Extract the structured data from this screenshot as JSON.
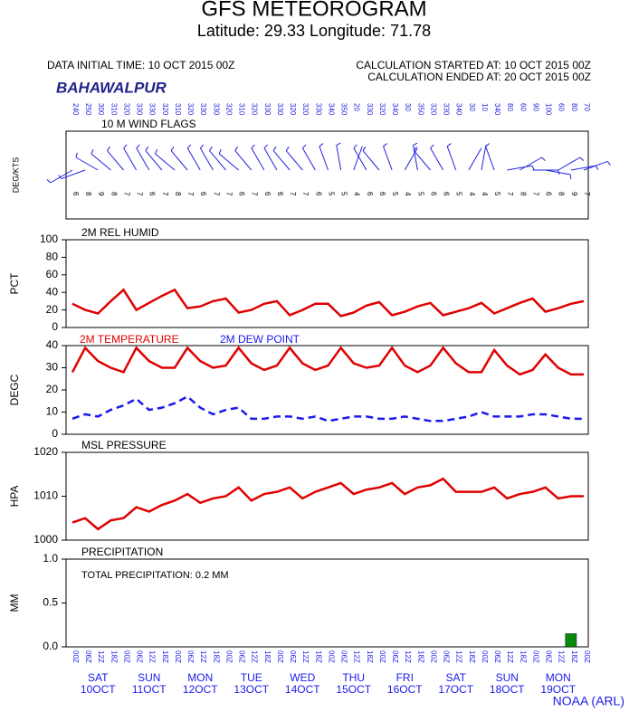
{
  "header": {
    "title": "GFS METEOROGRAM",
    "subtitle": "Latitude: 29.33 Longitude:  71.78",
    "initial_time": "DATA INITIAL TIME: 10 OCT 2015 00Z",
    "calc_started": "CALCULATION STARTED AT: 10 OCT 2015 00Z",
    "calc_ended": "CALCULATION ENDED AT: 20 OCT 2015 00Z",
    "station": "BAHAWALPUR"
  },
  "footer": "NOAA (ARL)",
  "time_axis": {
    "labels": [
      "00Z",
      "06Z",
      "12Z",
      "18Z",
      "00Z",
      "06Z",
      "12Z",
      "18Z",
      "00Z",
      "06Z",
      "12Z",
      "18Z",
      "00Z",
      "06Z",
      "12Z",
      "18Z",
      "00Z",
      "06Z",
      "12Z",
      "18Z",
      "00Z",
      "06Z",
      "12Z",
      "18Z",
      "00Z",
      "06Z",
      "12Z",
      "18Z",
      "00Z",
      "06Z",
      "12Z",
      "18Z",
      "00Z",
      "06Z",
      "12Z",
      "18Z",
      "00Z",
      "06Z",
      "12Z",
      "18Z",
      "00Z"
    ],
    "days": [
      {
        "day": "SAT",
        "date": "10OCT"
      },
      {
        "day": "SUN",
        "date": "11OCT"
      },
      {
        "day": "MON",
        "date": "12OCT"
      },
      {
        "day": "TUE",
        "date": "13OCT"
      },
      {
        "day": "WED",
        "date": "14OCT"
      },
      {
        "day": "THU",
        "date": "15OCT"
      },
      {
        "day": "FRI",
        "date": "16OCT"
      },
      {
        "day": "SAT",
        "date": "17OCT"
      },
      {
        "day": "SUN",
        "date": "18OCT"
      },
      {
        "day": "MON",
        "date": "19OCT"
      }
    ]
  },
  "chart_data": [
    {
      "type": "wind",
      "title": "10 M  WIND FLAGS",
      "ylabel": "DEG/KTS",
      "color": "#2222dd",
      "direction": [
        240,
        250,
        300,
        310,
        320,
        330,
        330,
        320,
        310,
        320,
        330,
        330,
        320,
        310,
        320,
        330,
        330,
        320,
        320,
        330,
        340,
        350,
        20,
        330,
        320,
        340,
        30,
        350,
        320,
        330,
        340,
        30,
        10,
        340,
        80,
        60,
        90,
        100,
        60,
        80,
        70
      ],
      "speed": [
        6,
        8,
        9,
        8,
        7,
        7,
        6,
        7,
        8,
        7,
        6,
        7,
        7,
        6,
        7,
        6,
        6,
        7,
        7,
        6,
        5,
        5,
        4,
        6,
        6,
        5,
        4,
        5,
        6,
        6,
        5,
        4,
        4,
        5,
        7,
        8,
        7,
        6,
        8,
        9,
        7
      ]
    },
    {
      "type": "line",
      "title": "2M REL HUMID",
      "ylabel": "PCT",
      "ylim": [
        0,
        100
      ],
      "yticks": [
        0,
        20,
        40,
        60,
        80,
        100
      ],
      "series": [
        {
          "color": "#e00000",
          "values": [
            27,
            20,
            16,
            30,
            43,
            20,
            28,
            36,
            43,
            22,
            24,
            30,
            33,
            17,
            20,
            27,
            30,
            14,
            20,
            27,
            27,
            13,
            17,
            25,
            29,
            14,
            18,
            24,
            28,
            14,
            18,
            22,
            28,
            16,
            22,
            28,
            33,
            18,
            22,
            27,
            30
          ]
        }
      ]
    },
    {
      "type": "line",
      "ylabel": "DEGC",
      "ylim": [
        0,
        40
      ],
      "yticks": [
        0,
        10,
        20,
        30,
        40
      ],
      "series": [
        {
          "name": "2M TEMPERATURE",
          "color": "#e00000",
          "values": [
            28,
            39,
            33,
            30,
            28,
            39,
            33,
            30,
            30,
            39,
            33,
            30,
            31,
            39,
            32,
            29,
            31,
            39,
            32,
            29,
            31,
            39,
            32,
            30,
            31,
            39,
            31,
            28,
            31,
            39,
            32,
            28,
            28,
            38,
            31,
            27,
            29,
            36,
            30,
            27,
            27
          ]
        },
        {
          "name": "2M  DEW POINT",
          "color": "#1a1aee",
          "dashed": true,
          "values": [
            7,
            9,
            8,
            11,
            13,
            16,
            11,
            12,
            14,
            17,
            12,
            9,
            11,
            12,
            7,
            7,
            8,
            8,
            7,
            8,
            6,
            7,
            8,
            8,
            7,
            7,
            8,
            7,
            6,
            6,
            7,
            8,
            10,
            8,
            8,
            8,
            9,
            9,
            8,
            7,
            7
          ]
        }
      ]
    },
    {
      "type": "line",
      "title": "MSL PRESSURE",
      "ylabel": "HPA",
      "ylim": [
        1000,
        1020
      ],
      "yticks": [
        1000,
        1010,
        1020
      ],
      "series": [
        {
          "color": "#e00000",
          "values": [
            1004,
            1005,
            1002.5,
            1004.5,
            1005,
            1007.5,
            1006.5,
            1008,
            1009,
            1010.5,
            1008.5,
            1009.5,
            1010,
            1012,
            1009,
            1010.5,
            1011,
            1012,
            1009.5,
            1011,
            1012,
            1013,
            1010.5,
            1011.5,
            1012,
            1013,
            1010.5,
            1012,
            1012.5,
            1014,
            1011,
            1011,
            1011,
            1012,
            1009.5,
            1010.5,
            1011,
            1012,
            1009.5,
            1010,
            1010
          ]
        }
      ]
    },
    {
      "type": "bar",
      "title": "PRECIPITATION",
      "note": "TOTAL PRECIPITATION:  0.2 MM",
      "ylabel": "MM",
      "ylim": [
        0,
        1
      ],
      "yticks": [
        {
          "value": 0,
          "label": "0.0"
        },
        {
          "value": 0.5,
          "label": "0.5"
        },
        {
          "value": 1,
          "label": "1.0"
        }
      ],
      "color": "#0a8a0a",
      "values": [
        0,
        0,
        0,
        0,
        0,
        0,
        0,
        0,
        0,
        0,
        0,
        0,
        0,
        0,
        0,
        0,
        0,
        0,
        0,
        0,
        0,
        0,
        0,
        0,
        0,
        0,
        0,
        0,
        0,
        0,
        0,
        0,
        0,
        0,
        0,
        0,
        0,
        0,
        0,
        0.15,
        0
      ]
    }
  ]
}
